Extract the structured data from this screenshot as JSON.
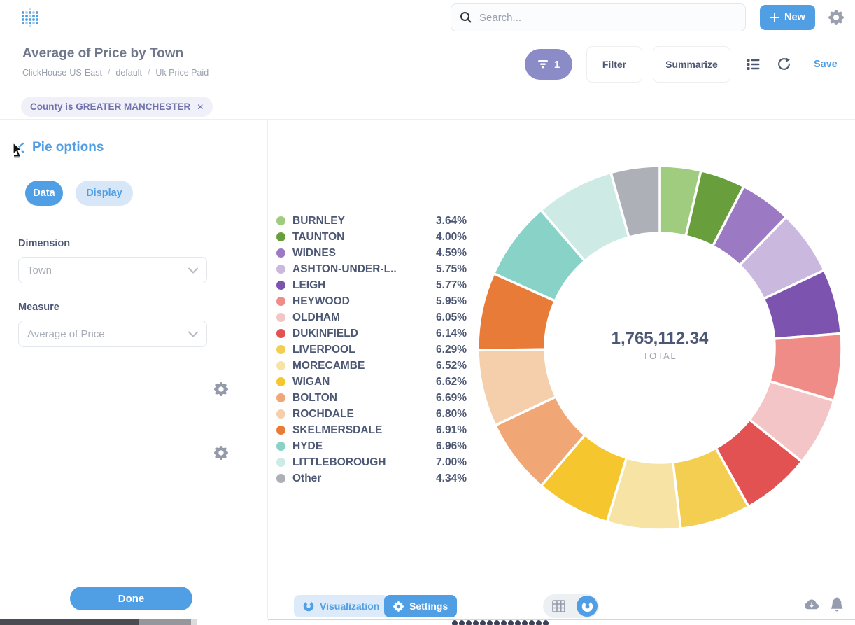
{
  "topbar": {
    "search_placeholder": "Search...",
    "new_label": "New"
  },
  "title_bar": {
    "title": "Average of Price by Town",
    "breadcrumb": [
      "ClickHouse-US-East",
      "default",
      "Uk Price Paid"
    ],
    "separator": "/"
  },
  "actions": {
    "filter_count": "1",
    "filter_label": "Filter",
    "summarize_label": "Summarize",
    "save_label": "Save"
  },
  "filter_chip": {
    "text": "County is GREATER MANCHESTER",
    "close": "✕"
  },
  "sidebar": {
    "heading": "Pie options",
    "tabs": [
      {
        "label": "Data",
        "active": true
      },
      {
        "label": "Display",
        "active": false
      }
    ],
    "dimension_label": "Dimension",
    "dimension_value": "Town",
    "measure_label": "Measure",
    "measure_value": "Average of Price",
    "done_label": "Done"
  },
  "footer": {
    "visualization_label": "Visualization",
    "settings_label": "Settings"
  },
  "chart_data": {
    "type": "pie",
    "style": "donut",
    "title": "Average of Price by Town",
    "legend_position": "left",
    "categories": [
      "BURNLEY",
      "TAUNTON",
      "WIDNES",
      "ASHTON-UNDER-L..",
      "LEIGH",
      "HEYWOOD",
      "OLDHAM",
      "DUKINFIELD",
      "LIVERPOOL",
      "MORECAMBE",
      "WIGAN",
      "BOLTON",
      "ROCHDALE",
      "SKELMERSDALE",
      "HYDE",
      "LITTLEBOROUGH",
      "Other"
    ],
    "values": [
      3.64,
      4.0,
      4.59,
      5.75,
      5.77,
      5.95,
      6.05,
      6.14,
      6.29,
      6.52,
      6.62,
      6.69,
      6.8,
      6.91,
      6.96,
      7.0,
      4.34
    ],
    "percent_labels": [
      "3.64%",
      "4.00%",
      "4.59%",
      "5.75%",
      "5.77%",
      "5.95%",
      "6.05%",
      "6.14%",
      "6.29%",
      "6.52%",
      "6.62%",
      "6.69%",
      "6.80%",
      "6.91%",
      "6.96%",
      "7.00%",
      "4.34%"
    ],
    "colors": [
      "#A0CC80",
      "#689E3C",
      "#9B79C3",
      "#CAB8DE",
      "#7D53B0",
      "#EF8C88",
      "#F4C5C7",
      "#E25252",
      "#F3CE51",
      "#F7E3A3",
      "#F5C62E",
      "#F0A675",
      "#F5CEAC",
      "#E97B39",
      "#88D2C8",
      "#CDEAE4",
      "#AEB0B8"
    ],
    "total": "1,765,112.34",
    "total_label": "TOTAL"
  },
  "theme": {
    "brand": "#509EE3",
    "filter_purple": "#8A8BC7",
    "chip_bg": "#F0F0F9",
    "chip_text": "#7172AD",
    "text_dark": "#4C5773",
    "text_light": "#9AA0AE",
    "border": "#EDEEF0"
  }
}
